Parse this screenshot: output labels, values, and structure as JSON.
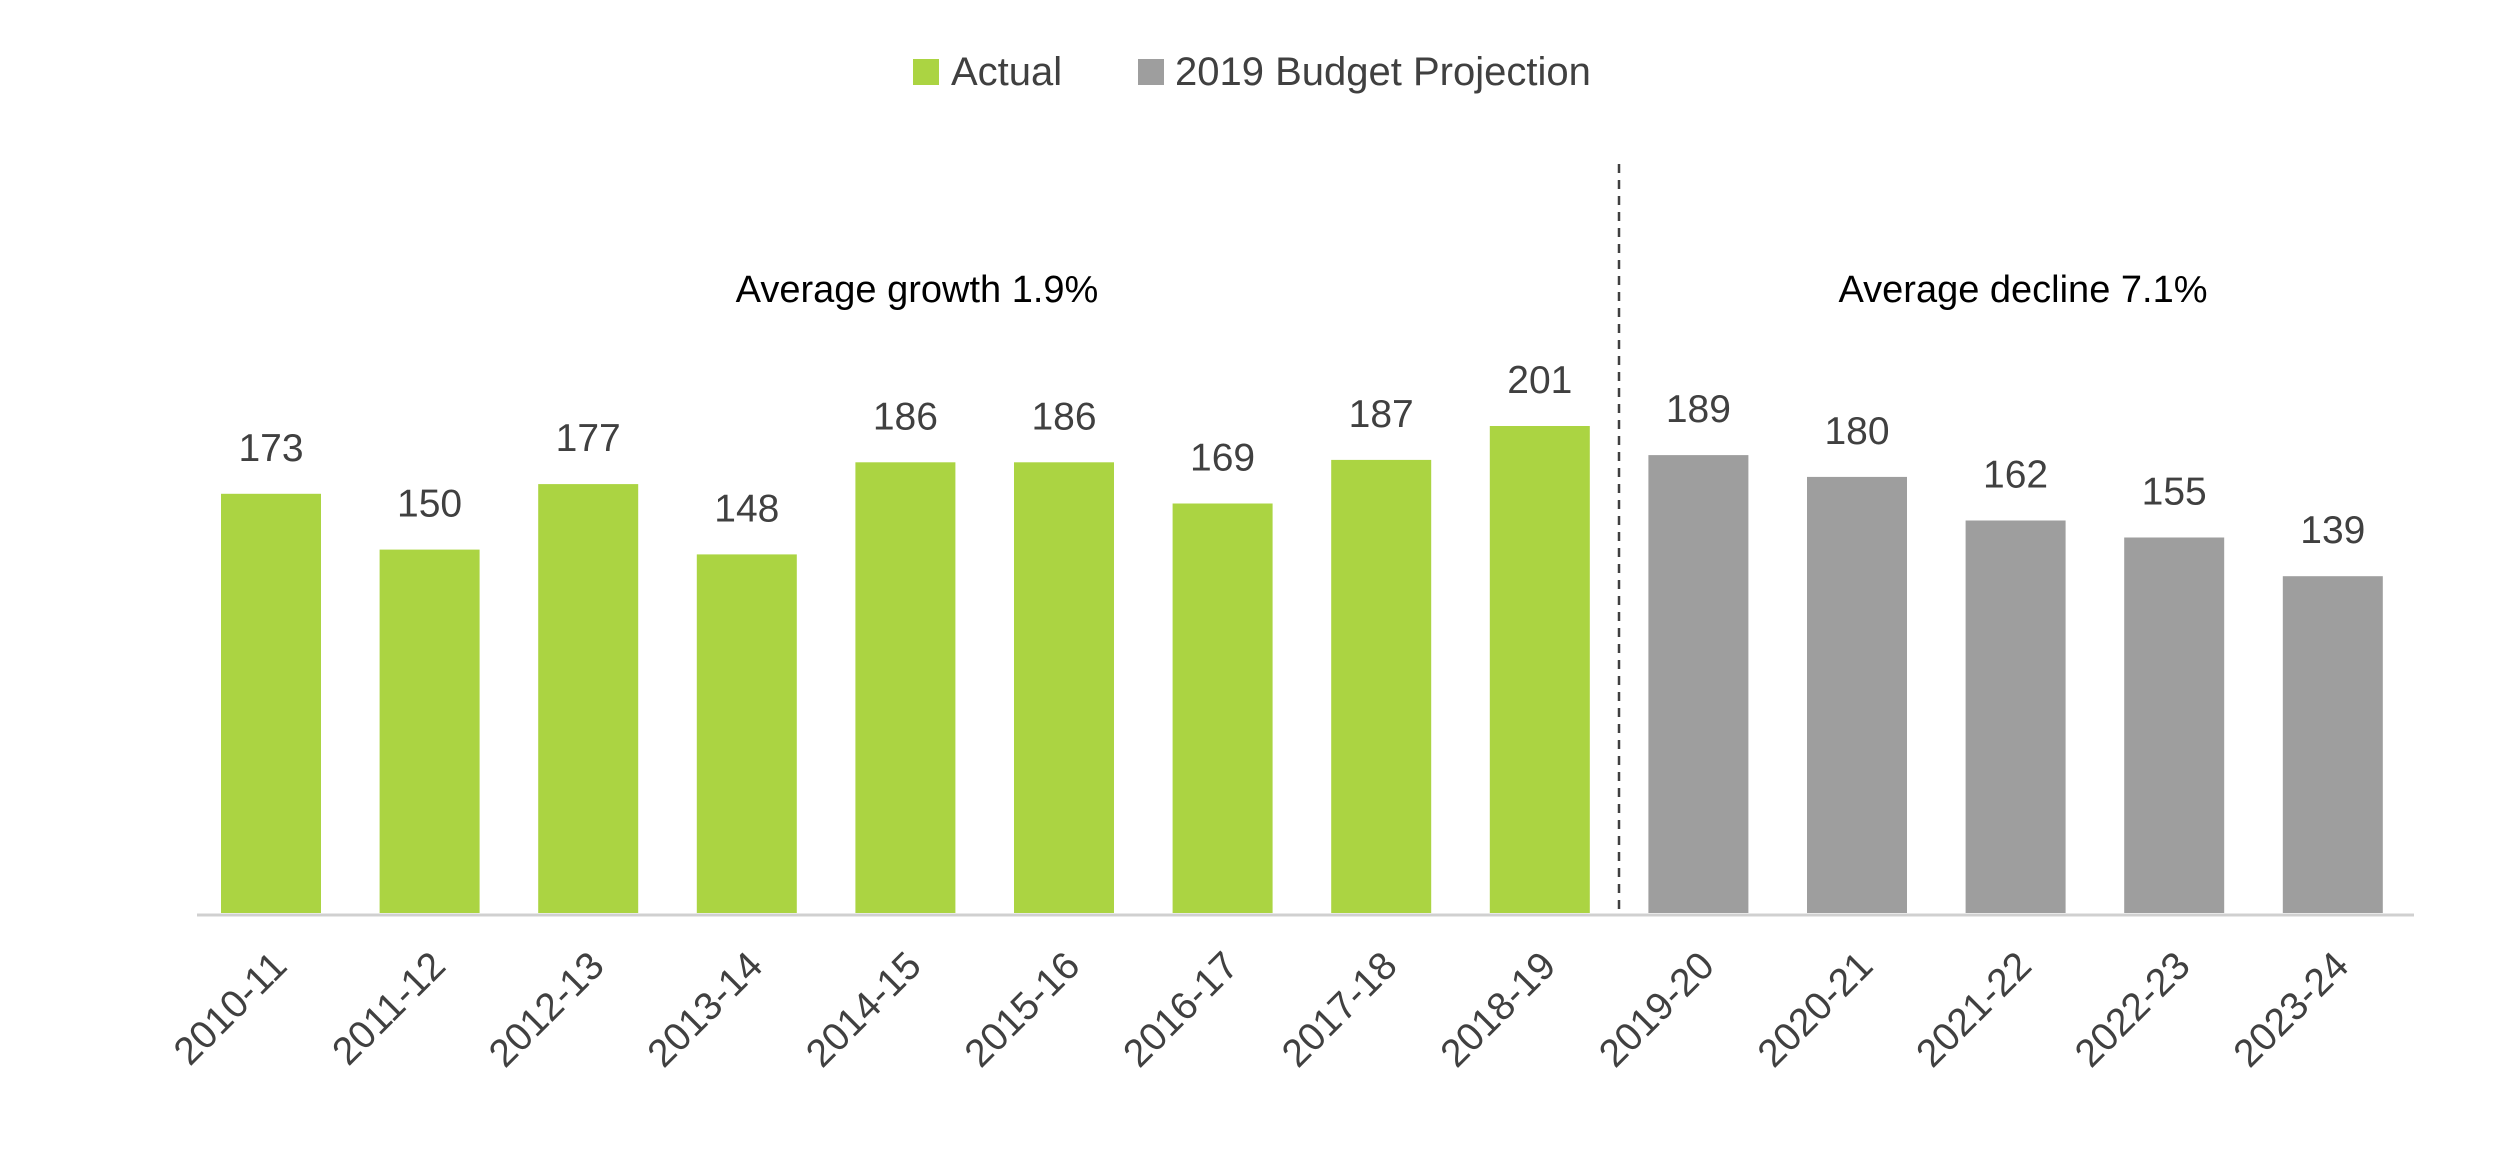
{
  "chart_data": {
    "type": "bar",
    "title": "",
    "xlabel": "",
    "ylabel": "",
    "ylim": [
      0,
      250
    ],
    "grid": false,
    "legend_position": "top-center",
    "categories": [
      "2010-11",
      "2011-12",
      "2012-13",
      "2013-14",
      "2014-15",
      "2015-16",
      "2016-17",
      "2017-18",
      "2018-19",
      "2019-20",
      "2020-21",
      "2021-22",
      "2022-23",
      "2023-24"
    ],
    "series": [
      {
        "name": "Actual",
        "color": "#abd442",
        "values": [
          173,
          150,
          177,
          148,
          186,
          186,
          169,
          187,
          201,
          null,
          null,
          null,
          null,
          null
        ]
      },
      {
        "name": "2019 Budget Projection",
        "color": "#9e9e9e",
        "values": [
          null,
          null,
          null,
          null,
          null,
          null,
          null,
          null,
          null,
          189,
          180,
          162,
          155,
          139
        ]
      }
    ],
    "annotations": [
      {
        "text": "Average growth 1.9%"
      },
      {
        "text": "Average decline 7.1%"
      }
    ],
    "divider": "between 2018-19 and 2019-20",
    "colors": {
      "axis": "#d0d0d0",
      "text": "#404040",
      "divider": "#404040"
    }
  }
}
